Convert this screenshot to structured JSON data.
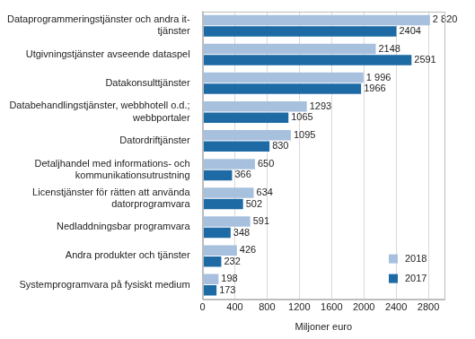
{
  "chart_data": {
    "type": "bar",
    "orientation": "horizontal",
    "categories": [
      [
        "Dataprogrammeringstjänster och andra it-",
        "tjänster"
      ],
      [
        "Utgivningstjänster avseende dataspel"
      ],
      [
        "Datakonsulttjänster"
      ],
      [
        "Databehandlingstjänster, webbhotell o.d.;",
        "webbportaler"
      ],
      [
        "Datordriftjänster"
      ],
      [
        "Detaljhandel med informations- och",
        "kommunikationsutrustning"
      ],
      [
        "Licenstjänster för rätten att använda",
        "datorprogramvara"
      ],
      [
        "Nedladdningsbar programvara"
      ],
      [
        "Andra produkter och tjänster"
      ],
      [
        "Systemprogramvara på fysiskt medium"
      ]
    ],
    "series": [
      {
        "name": "2018",
        "color": "#a7c0de",
        "values": [
          2820,
          2148,
          1996,
          1293,
          1095,
          650,
          634,
          591,
          426,
          198
        ],
        "value_labels": [
          "2 820",
          "2148",
          "1 996",
          "1293",
          "1095",
          "650",
          "634",
          "591",
          "426",
          "198"
        ]
      },
      {
        "name": "2017",
        "color": "#1d6aa5",
        "values": [
          2404,
          2591,
          1966,
          1065,
          830,
          366,
          502,
          348,
          232,
          173
        ]
      }
    ],
    "x_label": "Miljoner euro",
    "xlim": [
      0,
      3000
    ],
    "xticks": [
      0,
      400,
      800,
      1200,
      1600,
      2000,
      2400,
      2800
    ],
    "grid": true,
    "legend": "lower right",
    "data_labels": true
  }
}
